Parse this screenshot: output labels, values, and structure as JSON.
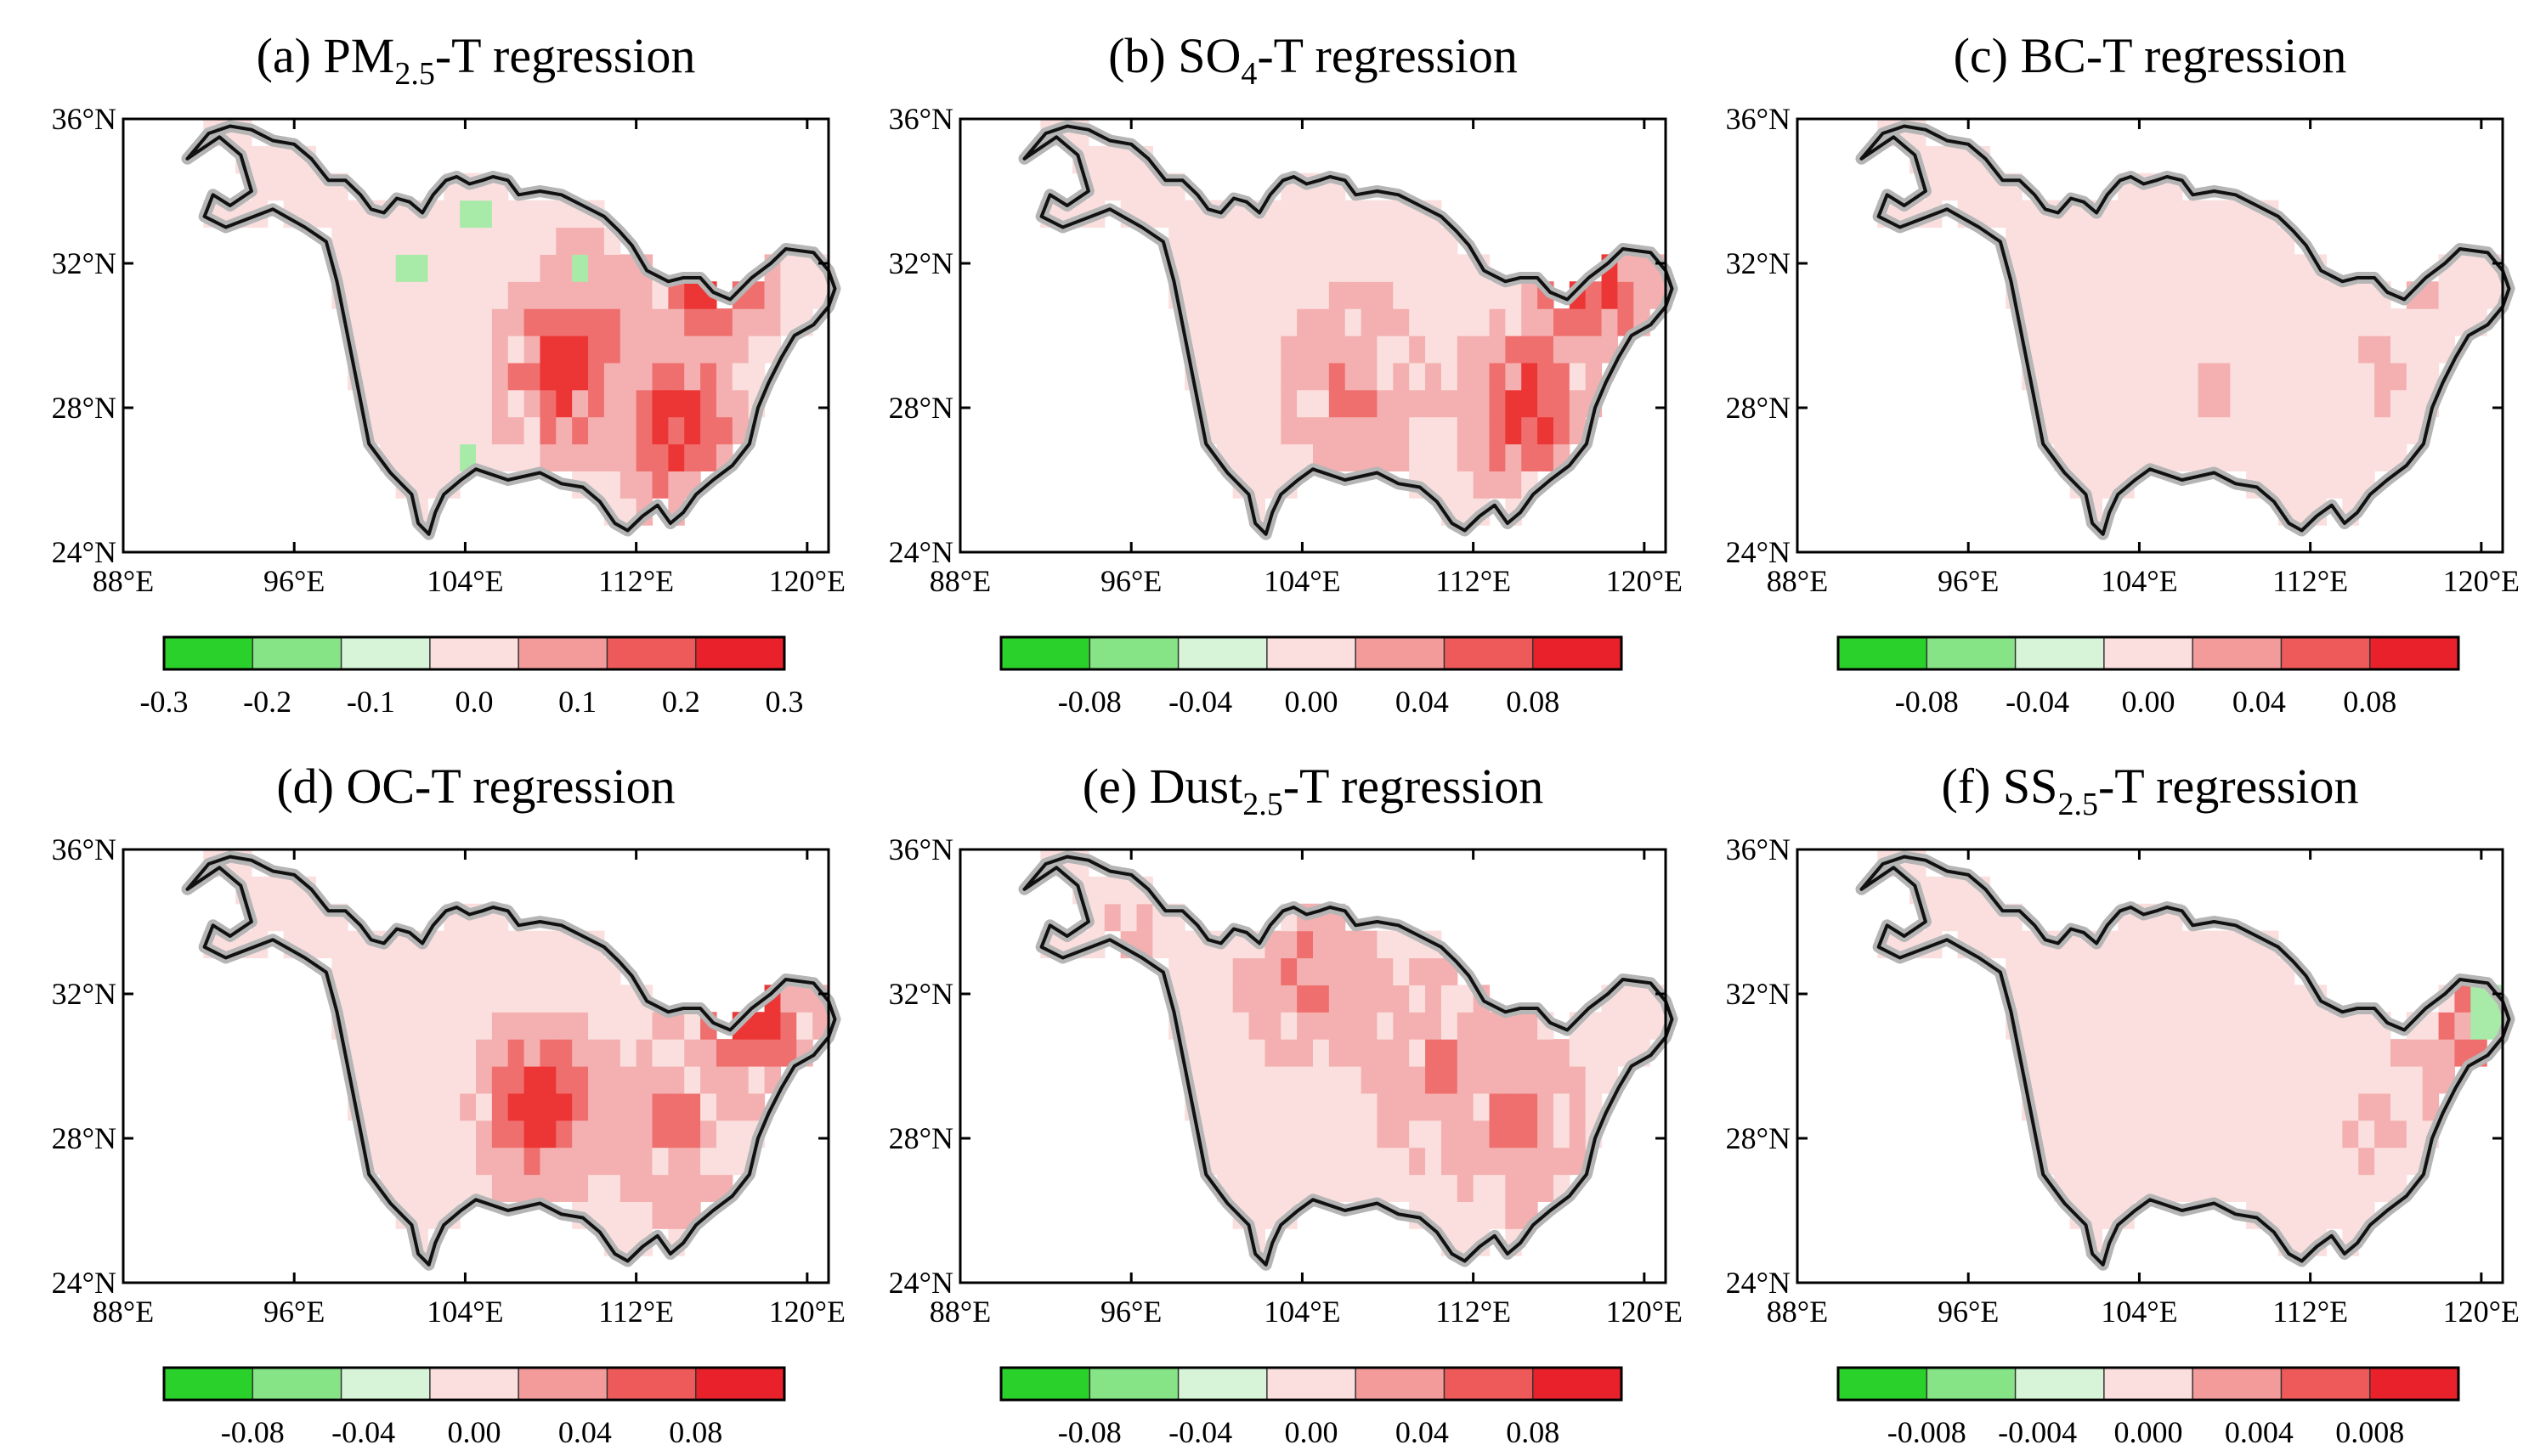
{
  "figure": {
    "panels": [
      {
        "key": "a",
        "title_pre": "(a) PM",
        "title_sub": "2.5",
        "title_post": "-T regression",
        "colorbar_ticks": [
          "-0.3",
          "-0.2",
          "-0.1",
          "0.0",
          "0.1",
          "0.2",
          "0.3"
        ],
        "hotspots": [
          {
            "lon": 115.5,
            "lat": 31.5,
            "v": 3
          },
          {
            "lon": 108.5,
            "lat": 29.0,
            "v": 3
          },
          {
            "lon": 114,
            "lat": 27.5,
            "v": 3
          },
          {
            "lon": 110,
            "lat": 30,
            "v": 2
          }
        ],
        "greens": [
          {
            "lon": 104.5,
            "lat": 33.5
          },
          {
            "lon": 109.5,
            "lat": 32.0
          },
          {
            "lon": 101.5,
            "lat": 32.0
          },
          {
            "lon": 104.0,
            "lat": 26.5
          }
        ]
      },
      {
        "key": "b",
        "title_pre": "(b) SO",
        "title_sub": "4",
        "title_post": "-T regression",
        "colorbar_ticks": [
          "-0.08",
          "-0.04",
          "0.00",
          "0.04",
          "0.08"
        ],
        "hotspots": [
          {
            "lon": 117.5,
            "lat": 31.5,
            "v": 3
          },
          {
            "lon": 114.5,
            "lat": 28.0,
            "v": 3
          },
          {
            "lon": 106.5,
            "lat": 28.5,
            "v": 2
          },
          {
            "lon": 110,
            "lat": 28.5,
            "v": 1
          }
        ],
        "greens": []
      },
      {
        "key": "c",
        "title_pre": "(c) BC-T regression",
        "title_sub": "",
        "title_post": "",
        "colorbar_ticks": [
          "-0.08",
          "-0.04",
          "0.00",
          "0.04",
          "0.08"
        ],
        "hotspots": [
          {
            "lon": 107.5,
            "lat": 28.5,
            "v": 1
          },
          {
            "lon": 115.5,
            "lat": 29.0,
            "v": 1
          },
          {
            "lon": 117,
            "lat": 31.5,
            "v": 1
          }
        ],
        "greens": []
      },
      {
        "key": "d",
        "title_pre": "(d) OC-T regression",
        "title_sub": "",
        "title_post": "",
        "colorbar_ticks": [
          "-0.08",
          "-0.04",
          "0.00",
          "0.04",
          "0.08"
        ],
        "hotspots": [
          {
            "lon": 107.5,
            "lat": 29.0,
            "v": 3
          },
          {
            "lon": 117.5,
            "lat": 31.5,
            "v": 3
          },
          {
            "lon": 114,
            "lat": 28.5,
            "v": 2
          },
          {
            "lon": 111,
            "lat": 30,
            "v": 1
          }
        ],
        "greens": []
      },
      {
        "key": "e",
        "title_pre": "(e) Dust",
        "title_sub": "2.5",
        "title_post": "-T regression",
        "colorbar_ticks": [
          "-0.08",
          "-0.04",
          "0.00",
          "0.04",
          "0.08"
        ],
        "hotspots": [
          {
            "lon": 110.5,
            "lat": 30.0,
            "v": 2
          },
          {
            "lon": 114,
            "lat": 28.5,
            "v": 2
          },
          {
            "lon": 104.5,
            "lat": 32.5,
            "v": 2
          },
          {
            "lon": 96,
            "lat": 33.5,
            "v": 1
          }
        ],
        "greens": []
      },
      {
        "key": "f",
        "title_pre": "(f) SS",
        "title_sub": "2.5",
        "title_post": "-T regression",
        "colorbar_ticks": [
          "-0.008",
          "-0.004",
          "0.000",
          "0.004",
          "0.008"
        ],
        "hotspots": [
          {
            "lon": 119.5,
            "lat": 31.0,
            "v": 2
          },
          {
            "lon": 115,
            "lat": 28,
            "v": 1
          }
        ],
        "greens": [
          {
            "lon": 120.3,
            "lat": 31.6
          }
        ]
      }
    ],
    "lat_labels": [
      "36°N",
      "32°N",
      "28°N",
      "24°N"
    ],
    "lon_labels": [
      "88°E",
      "96°E",
      "104°E",
      "112°E",
      "120°E"
    ],
    "colorbar_colors": [
      "#2bd12b",
      "#86e486",
      "#d8f4d8",
      "#fbdede",
      "#f39a9a",
      "#ee5a5a",
      "#e8212b"
    ],
    "shading_colors": [
      "#fbdfdf",
      "#f4b0b0",
      "#ef6f6f",
      "#ec3535"
    ],
    "green_color": "#a8eaa8"
  }
}
